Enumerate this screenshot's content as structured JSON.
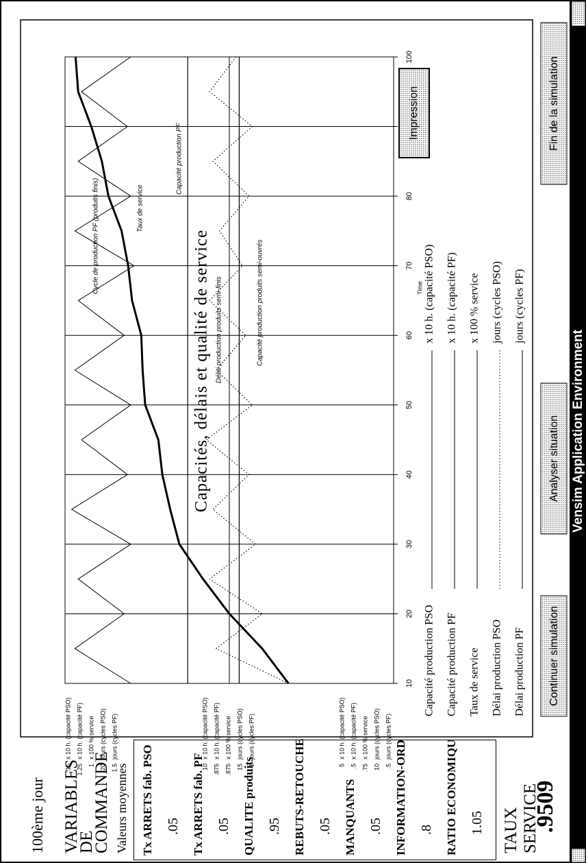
{
  "window_title": "Vensim Application Environment",
  "left_panel": {
    "day": "100ème jour",
    "heading": "VARIABLES DE COMMANDE",
    "subheading": "Valeurs moyennes",
    "variables": [
      {
        "label": "Tx ARRETS fab. PSO",
        "value": ".05"
      },
      {
        "label": "Tx ARRETS fab. PF",
        "value": ".05"
      },
      {
        "label": "QUALITE produits",
        "value": ".95"
      },
      {
        "label": "REBUTS-RETOUCHE",
        "value": ".05"
      },
      {
        "label": "MANQUANTS",
        "value": ".05"
      },
      {
        "label": "INFORMATION-ORD",
        "value": ".8"
      },
      {
        "label": "RATIO ECONOMIQU",
        "value": "1.05"
      }
    ],
    "result": {
      "label": "TAUX SERVICE",
      "value": ".9509"
    }
  },
  "chart_data": {
    "type": "line",
    "title": "Capacités, délais et qualité de service",
    "x_label": "Time",
    "x": [
      10,
      15,
      20,
      25,
      30,
      35,
      40,
      45,
      50,
      55,
      60,
      65,
      70,
      75,
      80,
      85,
      90,
      95,
      100
    ],
    "xlim": [
      10,
      100
    ],
    "xticks": [
      10,
      20,
      30,
      40,
      50,
      60,
      70,
      80,
      90,
      100
    ],
    "variables": [
      {
        "name": "Capacité production PSO",
        "unit": "x 10 h. (capacité PSO)",
        "annotation": "Capacité production produits semi-ouvrés",
        "ticks": [
          15,
          10,
          5
        ],
        "values": [
          9.7,
          9.7,
          9.7,
          9.7,
          9.7,
          9.7,
          9.7,
          9.7,
          9.7,
          9.7,
          9.7,
          9.7,
          9.7,
          9.7,
          9.7,
          9.7,
          9.7,
          9.7,
          9.7
        ]
      },
      {
        "name": "Capacité production PF",
        "unit": "x 10 h. (capacité PF)",
        "annotation": "Capacité production PF",
        "ticks": [
          1.25,
          {
            "value": 0.875,
            "label": ".875"
          },
          {
            "value": 0.5,
            "label": ".5"
          }
        ],
        "values": [
          0.97,
          0.97,
          0.97,
          0.97,
          0.97,
          0.97,
          0.97,
          0.97,
          0.97,
          0.97,
          0.97,
          0.97,
          0.97,
          0.97,
          0.97,
          0.97,
          0.97,
          0.97,
          0.97
        ]
      },
      {
        "name": "Taux de service",
        "unit": "x 100 % service",
        "annotation": "Taux de service",
        "ticks": [
          1,
          {
            "value": 0.875,
            "label": ".875"
          },
          {
            "value": 0.75,
            "label": ".75"
          }
        ],
        "values": [
          0.83,
          0.85,
          0.875,
          0.895,
          0.913,
          0.92,
          0.926,
          0.929,
          0.939,
          0.941,
          0.942,
          0.949,
          0.952,
          0.957,
          0.967,
          0.972,
          0.98,
          0.99,
          0.992
        ]
      },
      {
        "name": "Délai production PSO",
        "unit": "jours (cycles PSO)",
        "annotation": "Délai production produits semi-finis",
        "ticks": [
          20,
          15,
          10
        ],
        "values": [
          13.2,
          15.4,
          14.0,
          15.6,
          14.2,
          15.5,
          14.4,
          15.7,
          14.3,
          15.4,
          14.5,
          15.6,
          14.6,
          15.3,
          14.4,
          15.5,
          14.3,
          15.6,
          14.8
        ]
      },
      {
        "name": "Délai production PF",
        "unit": "jours (cycles PF)",
        "annotation": "Cycle de production PF (produits finis)",
        "ticks": [
          1.5,
          1,
          {
            "value": 0.5,
            "label": ".5"
          }
        ],
        "values": [
          1.3,
          1.47,
          1.32,
          1.46,
          1.3,
          1.48,
          1.31,
          1.45,
          1.3,
          1.47,
          1.32,
          1.46,
          1.29,
          1.47,
          1.3,
          1.46,
          1.31,
          1.45,
          1.3
        ]
      }
    ]
  },
  "buttons": {
    "continue": "Continuer simulation",
    "analyse": "Analyser situation",
    "finish": "Fin de la simulation",
    "print": "Impression"
  }
}
